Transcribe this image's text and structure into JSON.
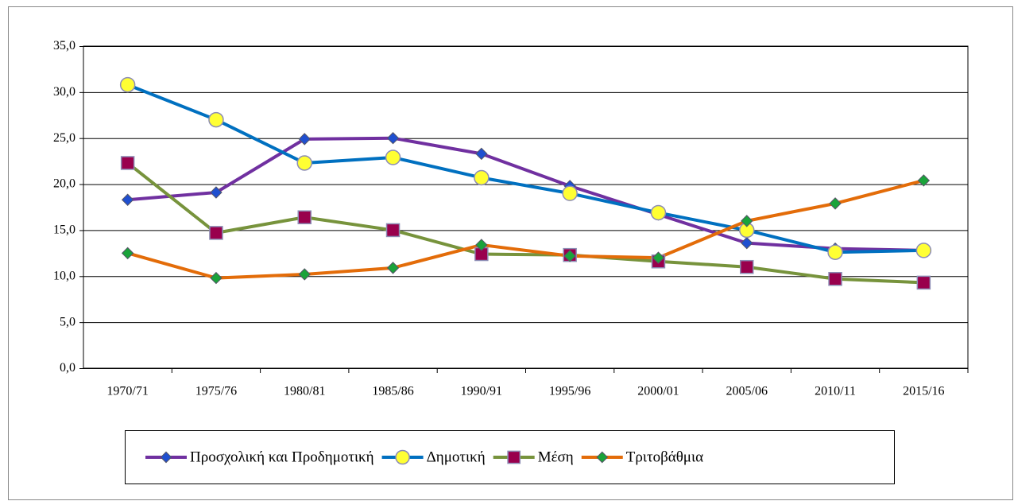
{
  "chart_data": {
    "type": "line",
    "categories": [
      "1970/71",
      "1975/76",
      "1980/81",
      "1985/86",
      "1990/91",
      "1995/96",
      "2000/01",
      "2005/06",
      "2010/11",
      "2015/16"
    ],
    "ylim": [
      0,
      35
    ],
    "yticks": [
      {
        "value": 0,
        "label": "0,0"
      },
      {
        "value": 5,
        "label": "5,0"
      },
      {
        "value": 10,
        "label": "10,0"
      },
      {
        "value": 15,
        "label": "15,0"
      },
      {
        "value": 20,
        "label": "20,0"
      },
      {
        "value": 25,
        "label": "25,0"
      },
      {
        "value": 30,
        "label": "30,0"
      },
      {
        "value": 35,
        "label": "35,0"
      }
    ],
    "grid": true,
    "legend": "bottom",
    "series": [
      {
        "name": "Προσχολική και Προδημοτική",
        "color": "#7030a0",
        "marker": "diamond",
        "marker_color": "#1f4fd0",
        "values": [
          18.3,
          19.1,
          24.9,
          25.0,
          23.3,
          19.8,
          16.7,
          13.6,
          13.0,
          12.8
        ]
      },
      {
        "name": "Δημοτική",
        "color": "#0070c0",
        "marker": "circle",
        "marker_color": "#ffff33",
        "values": [
          30.8,
          27.0,
          22.3,
          22.9,
          20.7,
          19.0,
          16.9,
          15.0,
          12.6,
          12.8
        ]
      },
      {
        "name": "Μέση",
        "color": "#77933c",
        "marker": "square",
        "marker_color": "#99004d",
        "values": [
          22.3,
          14.7,
          16.4,
          15.0,
          12.4,
          12.3,
          11.6,
          11.0,
          9.7,
          9.3
        ]
      },
      {
        "name": "Τριτοβάθμια",
        "color": "#e36c09",
        "marker": "diamond",
        "marker_color": "#1aa33a",
        "values": [
          12.5,
          9.8,
          10.2,
          10.9,
          13.4,
          12.2,
          12.0,
          16.0,
          17.9,
          20.4
        ]
      }
    ]
  }
}
